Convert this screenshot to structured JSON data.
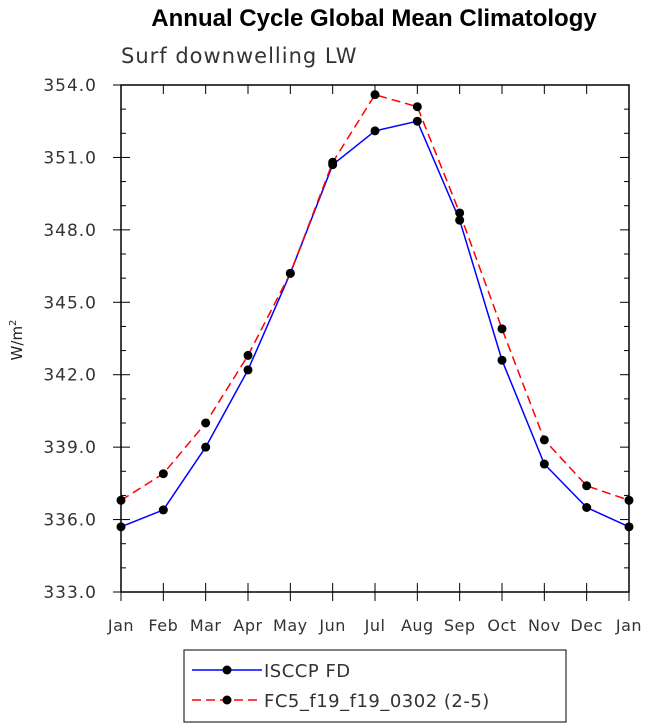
{
  "chart_data": {
    "type": "line",
    "title": "Annual Cycle Global Mean Climatology",
    "subtitle": "Surf downwelling LW",
    "ylabel": "W/m",
    "ylabel_sup": "2",
    "ylim": [
      333.0,
      354.0
    ],
    "yticks": [
      333.0,
      336.0,
      339.0,
      342.0,
      345.0,
      348.0,
      351.0,
      354.0
    ],
    "ytick_labels": [
      "333.0",
      "336.0",
      "339.0",
      "342.0",
      "345.0",
      "348.0",
      "351.0",
      "354.0"
    ],
    "categories": [
      "Jan",
      "Feb",
      "Mar",
      "Apr",
      "May",
      "Jun",
      "Jul",
      "Aug",
      "Sep",
      "Oct",
      "Nov",
      "Dec",
      "Jan"
    ],
    "series": [
      {
        "name": "ISCCP FD",
        "color": "#0000ff",
        "dash": "solid",
        "values": [
          335.7,
          336.4,
          339.0,
          342.2,
          346.2,
          350.7,
          352.1,
          352.5,
          348.4,
          342.6,
          338.3,
          336.5,
          335.7
        ]
      },
      {
        "name": "FC5_f19_f19_0302 (2-5)",
        "color": "#ff0000",
        "dash": "dashed",
        "values": [
          336.8,
          337.9,
          340.0,
          342.8,
          346.2,
          350.8,
          353.6,
          353.1,
          348.7,
          343.9,
          339.3,
          337.4,
          336.8
        ]
      }
    ],
    "legend_position": "bottom-left"
  }
}
